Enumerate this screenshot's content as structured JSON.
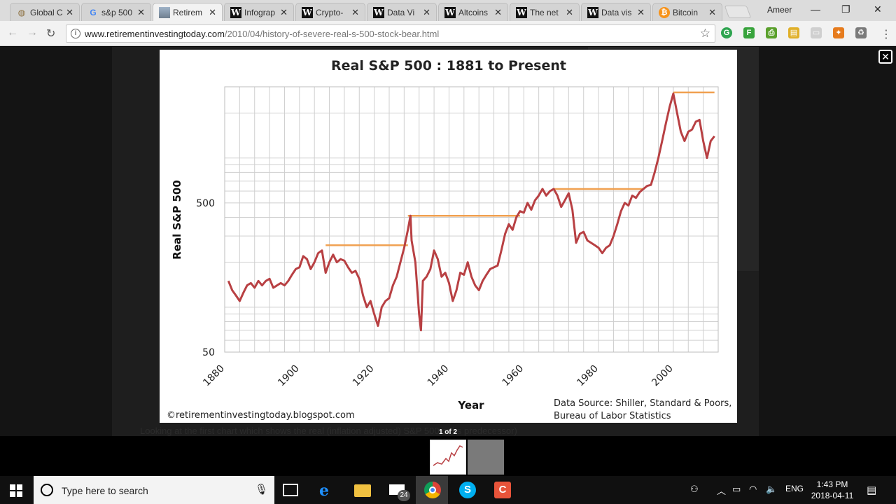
{
  "browser": {
    "tabs": [
      {
        "label": "Global C",
        "icon": "globe-icon",
        "fav": "glob",
        "glyph": "◍"
      },
      {
        "label": "s&p 500",
        "icon": "google-icon",
        "fav": "g",
        "glyph": "G"
      },
      {
        "label": "Retirem",
        "icon": "site-icon",
        "fav": "ri",
        "glyph": ""
      },
      {
        "label": "Infograp",
        "icon": "wikipedia-icon",
        "fav": "w",
        "glyph": "W"
      },
      {
        "label": "Crypto-",
        "icon": "wikipedia-icon",
        "fav": "w",
        "glyph": "W"
      },
      {
        "label": "Data Vi",
        "icon": "wikipedia-icon",
        "fav": "w",
        "glyph": "W"
      },
      {
        "label": "Altcoins",
        "icon": "wikipedia-icon",
        "fav": "w",
        "glyph": "W"
      },
      {
        "label": "The net",
        "icon": "wikipedia-icon",
        "fav": "w",
        "glyph": "W"
      },
      {
        "label": "Data vis",
        "icon": "wikipedia-icon",
        "fav": "w",
        "glyph": "W"
      },
      {
        "label": "Bitcoin",
        "icon": "bitcoin-icon",
        "fav": "btc",
        "glyph": "₿"
      }
    ],
    "active_tab": 2,
    "profile_name": "Ameer",
    "url_host": "www.retirementinvestingtoday.com",
    "url_path": "/2010/04/history-of-severe-real-s-500-stock-bear.html"
  },
  "page": {
    "caption_text": "Looking at the first chart which shows the real (inflation adjusted) S&P 500 or its predecessor)",
    "thumb_counter": "1 of 2"
  },
  "chart_data": {
    "type": "line",
    "title": "Real S&P 500 : 1881 to Present",
    "xlabel": "Year",
    "ylabel": "Real S&P 500",
    "x_ticks": [
      "1880",
      "1900",
      "1920",
      "1940",
      "1960",
      "1980",
      "2000"
    ],
    "y_ticks": [
      "50",
      "500"
    ],
    "y_scale": "log",
    "xlim": [
      1880,
      2012
    ],
    "ylim": [
      50,
      3000
    ],
    "grid": true,
    "watermark": "©retirementinvestingtoday.blogspot.com",
    "source_line1": "Data Source: Shiller, Standard & Poors,",
    "source_line2": "Bureau of Labor Statistics",
    "colors": {
      "line": "#b84043",
      "peaks": "#f0a050",
      "grid": "#cfcfcf"
    },
    "series": [
      {
        "x": [
          1881,
          1882,
          1883,
          1884,
          1885,
          1886,
          1887,
          1888,
          1889,
          1890,
          1891,
          1892,
          1893,
          1894,
          1895,
          1896,
          1897,
          1898,
          1899,
          1900,
          1901,
          1902,
          1903,
          1904,
          1905,
          1906,
          1907,
          1908,
          1909,
          1910,
          1911,
          1912,
          1913,
          1914,
          1915,
          1916,
          1917,
          1918,
          1919,
          1920,
          1921,
          1922,
          1923,
          1924,
          1925,
          1926,
          1927,
          1928,
          1929,
          1929.7,
          1930,
          1931,
          1932,
          1932.5,
          1933,
          1934,
          1935,
          1936,
          1937,
          1938,
          1939,
          1940,
          1941,
          1942,
          1943,
          1944,
          1945,
          1946,
          1947,
          1948,
          1949,
          1950,
          1951,
          1952,
          1953,
          1954,
          1955,
          1956,
          1957,
          1958,
          1959,
          1960,
          1961,
          1962,
          1963,
          1964,
          1965,
          1966,
          1967,
          1968,
          1969,
          1970,
          1971,
          1972,
          1973,
          1974,
          1975,
          1976,
          1977,
          1978,
          1979,
          1980,
          1981,
          1982,
          1983,
          1984,
          1985,
          1986,
          1987,
          1988,
          1989,
          1990,
          1991,
          1992,
          1993,
          1994,
          1995,
          1996,
          1997,
          1998,
          1999,
          2000,
          2001,
          2002,
          2003,
          2004,
          2005,
          2006,
          2007,
          2008,
          2009,
          2010,
          2011
        ],
        "y": [
          150,
          130,
          120,
          110,
          125,
          140,
          145,
          135,
          150,
          140,
          150,
          155,
          135,
          140,
          145,
          140,
          150,
          165,
          180,
          185,
          220,
          210,
          180,
          200,
          230,
          240,
          170,
          200,
          225,
          200,
          210,
          205,
          185,
          170,
          175,
          155,
          120,
          100,
          110,
          90,
          75,
          100,
          110,
          115,
          140,
          160,
          200,
          250,
          330,
          410,
          280,
          200,
          90,
          70,
          150,
          160,
          180,
          240,
          210,
          160,
          170,
          145,
          110,
          130,
          170,
          165,
          200,
          160,
          140,
          130,
          150,
          165,
          180,
          185,
          190,
          240,
          310,
          360,
          330,
          400,
          440,
          430,
          500,
          450,
          520,
          560,
          620,
          560,
          600,
          620,
          560,
          470,
          520,
          580,
          450,
          270,
          310,
          320,
          280,
          270,
          260,
          250,
          230,
          250,
          260,
          300,
          360,
          440,
          500,
          480,
          560,
          540,
          590,
          620,
          650,
          660,
          800,
          1000,
          1300,
          1700,
          2200,
          2700,
          2000,
          1500,
          1300,
          1500,
          1550,
          1750,
          1800,
          1300,
          1000,
          1300,
          1400
        ]
      }
    ],
    "peak_levels": [
      {
        "from": 1907,
        "to": 1929,
        "value": 260
      },
      {
        "from": 1929,
        "to": 1959,
        "value": 410
      },
      {
        "from": 1968,
        "to": 1992,
        "value": 620
      },
      {
        "from": 2000,
        "to": 2011,
        "value": 2750
      }
    ]
  },
  "taskbar": {
    "search_placeholder": "Type here to search",
    "mail_badge": "24",
    "language": "ENG",
    "time": "1:43 PM",
    "date": "2018-04-11"
  }
}
